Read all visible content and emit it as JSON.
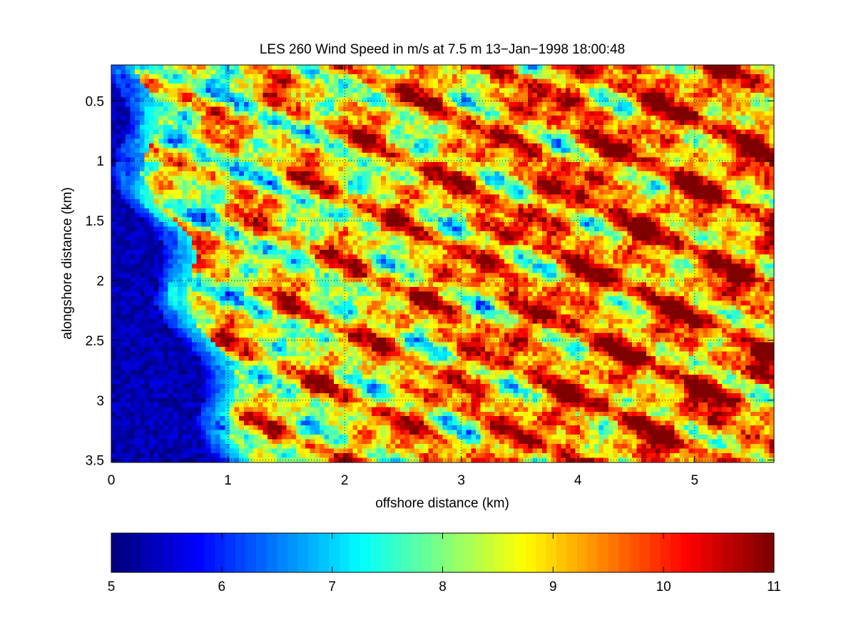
{
  "chart_data": {
    "type": "heatmap",
    "title": "LES 260 Wind Speed in m/s at 7.5 m 13−Jan−1998 18:00:48",
    "xlabel": "offshore distance (km)",
    "ylabel": "alongshore distance (km)",
    "xlim": [
      0,
      5.68
    ],
    "ylim": [
      0.2,
      3.52
    ],
    "y_reversed": true,
    "grid": true,
    "x_ticks": [
      0,
      1,
      2,
      3,
      4,
      5
    ],
    "x_tick_labels": [
      "0",
      "1",
      "2",
      "3",
      "4",
      "5"
    ],
    "y_ticks": [
      0.5,
      1,
      1.5,
      2,
      2.5,
      3,
      3.5
    ],
    "y_tick_labels": [
      "0.5",
      "1",
      "1.5",
      "2",
      "2.5",
      "3",
      "3.5"
    ],
    "colormap": "jet",
    "clim": [
      5,
      11
    ],
    "colorbar": {
      "orientation": "horizontal",
      "location": "below",
      "ticks": [
        5,
        6,
        7,
        8,
        9,
        10,
        11
      ],
      "tick_labels": [
        "5",
        "6",
        "7",
        "8",
        "9",
        "10",
        "11"
      ]
    },
    "field_description": "Wind speed field in m/s; low speeds (~5) in a band along the left shoreline and at x<0.5 km, with diagonal streaks oriented from upper-left to lower-right and high-speed (~10-11) patches increasing offshore beyond ~2 km."
  }
}
